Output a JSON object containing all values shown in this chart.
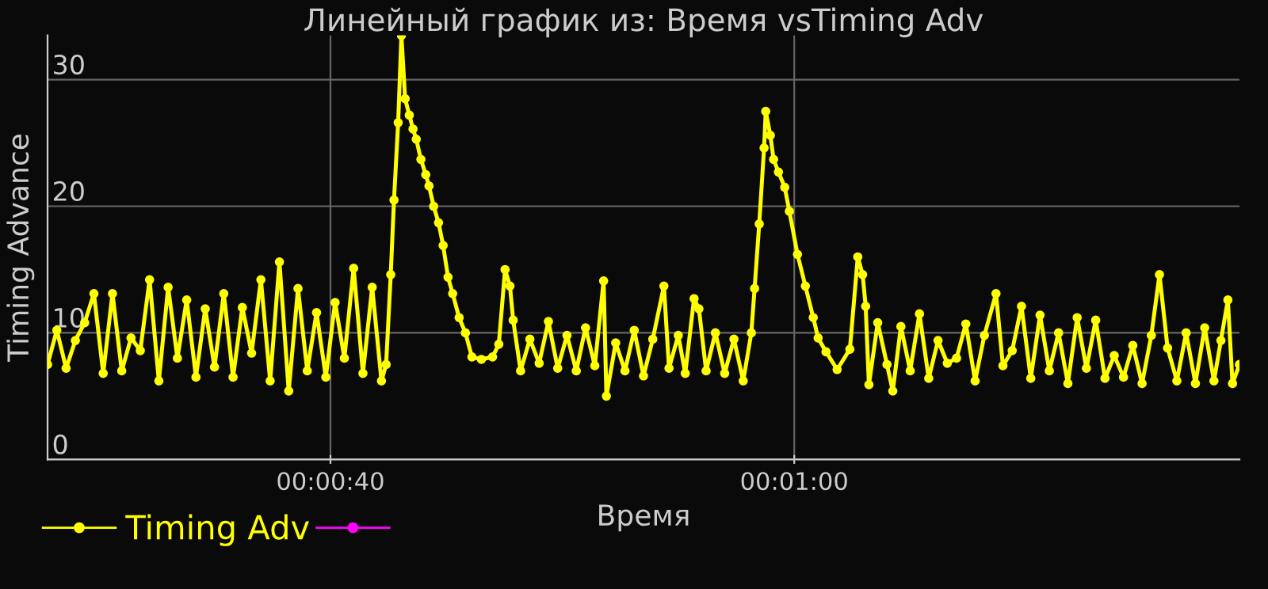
{
  "chart_data": {
    "type": "line",
    "title": "Линейный график из: Время vsTiming Adv",
    "xlabel": "Время",
    "ylabel": "Timing Advance",
    "xlim": [
      27.8,
      79.2
    ],
    "ylim": [
      0,
      33.5
    ],
    "xticks": [
      {
        "value": 40,
        "label": "00:00:40"
      },
      {
        "value": 60,
        "label": "00:01:00"
      }
    ],
    "yticks": [
      0,
      10,
      20,
      30
    ],
    "grid": true,
    "legend": "bottom left",
    "marker": "circle",
    "line_style": "solid",
    "series": [
      {
        "name": "Timing Adv",
        "color": "#ffff00",
        "x": [
          27.8,
          28.2,
          28.6,
          29.0,
          29.4,
          29.8,
          30.2,
          30.6,
          31.0,
          31.4,
          31.8,
          32.2,
          32.6,
          33.0,
          33.4,
          33.8,
          34.2,
          34.6,
          35.0,
          35.4,
          35.8,
          36.2,
          36.6,
          37.0,
          37.4,
          37.8,
          38.2,
          38.6,
          39.0,
          39.4,
          39.8,
          40.2,
          40.6,
          41.0,
          41.4,
          41.8,
          42.2,
          42.4,
          42.6,
          42.74,
          42.92,
          43.06,
          43.22,
          43.4,
          43.56,
          43.7,
          43.9,
          44.11,
          44.25,
          44.45,
          44.66,
          44.86,
          45.07,
          45.27,
          45.55,
          45.82,
          46.1,
          46.51,
          46.99,
          47.26,
          47.53,
          47.74,
          47.88,
          48.2,
          48.6,
          49.0,
          49.4,
          49.8,
          50.2,
          50.6,
          51.0,
          51.4,
          51.78,
          51.9,
          52.3,
          52.7,
          53.1,
          53.5,
          53.9,
          54.38,
          54.6,
          55.0,
          55.3,
          55.68,
          55.89,
          56.2,
          56.6,
          57.0,
          57.4,
          57.8,
          58.15,
          58.29,
          58.49,
          58.7,
          58.77,
          58.97,
          59.11,
          59.32,
          59.59,
          59.79,
          60.14,
          60.48,
          60.82,
          61.03,
          61.37,
          61.85,
          62.4,
          62.74,
          62.95,
          63.08,
          63.22,
          63.6,
          64.0,
          64.25,
          64.6,
          65.0,
          65.4,
          65.8,
          66.2,
          66.6,
          67.0,
          67.4,
          67.8,
          68.2,
          68.7,
          69.0,
          69.4,
          69.8,
          70.2,
          70.6,
          71.0,
          71.4,
          71.8,
          72.2,
          72.6,
          73.0,
          73.4,
          73.8,
          74.2,
          74.6,
          75.0,
          75.4,
          75.75,
          76.1,
          76.5,
          76.9,
          77.3,
          77.7,
          78.1,
          78.4,
          78.7,
          78.9,
          79.2
        ],
        "values": [
          7.5,
          10.2,
          7.2,
          9.4,
          10.8,
          13.1,
          6.8,
          13.1,
          7.0,
          9.6,
          8.6,
          14.2,
          6.2,
          13.6,
          8.0,
          12.6,
          6.5,
          11.9,
          7.3,
          13.1,
          6.5,
          12.0,
          8.4,
          14.2,
          6.2,
          15.6,
          5.4,
          13.5,
          7.0,
          11.6,
          6.5,
          12.4,
          8.0,
          15.1,
          6.8,
          13.6,
          6.2,
          7.5,
          14.6,
          20.5,
          26.6,
          33.5,
          28.5,
          27.2,
          26.1,
          25.3,
          23.7,
          22.5,
          21.6,
          20.0,
          18.7,
          16.9,
          14.4,
          13.1,
          11.2,
          10.0,
          8.1,
          7.9,
          8.1,
          9.1,
          15.0,
          13.7,
          11.0,
          7.0,
          9.5,
          7.6,
          10.9,
          7.2,
          9.8,
          7.0,
          10.4,
          7.4,
          14.1,
          5.0,
          9.2,
          7.0,
          10.2,
          6.6,
          9.5,
          13.7,
          7.2,
          9.8,
          6.8,
          12.7,
          11.9,
          7.0,
          10.0,
          6.8,
          9.5,
          6.2,
          10.0,
          13.5,
          18.6,
          24.6,
          27.5,
          25.6,
          23.7,
          22.7,
          21.5,
          19.6,
          16.2,
          13.7,
          11.2,
          9.6,
          8.5,
          7.1,
          8.7,
          16.0,
          14.6,
          12.1,
          5.9,
          10.8,
          7.5,
          5.4,
          10.5,
          7.0,
          11.5,
          6.4,
          9.4,
          7.6,
          8.0,
          10.7,
          6.2,
          9.8,
          13.1,
          7.4,
          8.6,
          12.1,
          6.4,
          11.4,
          7.0,
          10.0,
          6.0,
          11.2,
          7.2,
          11.0,
          6.4,
          8.2,
          6.5,
          9.0,
          6.0,
          9.8,
          14.6,
          8.8,
          6.2,
          10.0,
          6.0,
          10.4,
          6.2,
          9.4,
          12.6,
          6.0,
          7.5
        ]
      },
      {
        "color": "#ff00ff"
      }
    ]
  }
}
